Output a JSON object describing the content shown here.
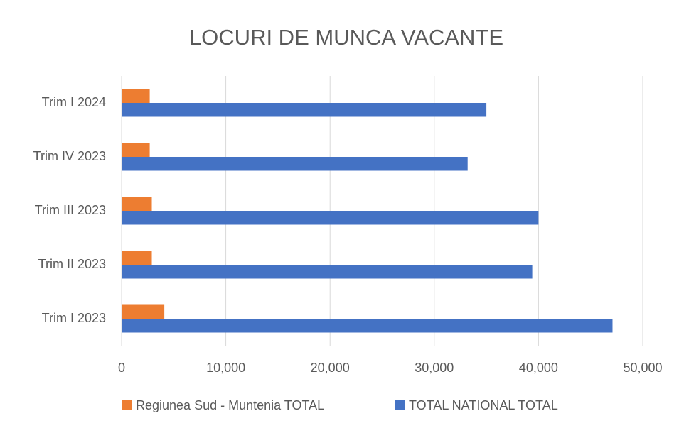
{
  "chart_data": {
    "type": "hbar",
    "title": "LOCURI DE MUNCA VACANTE",
    "categories": [
      "Trim I 2023",
      "Trim II 2023",
      "Trim III 2023",
      "Trim IV 2023",
      "Trim I 2024"
    ],
    "series": [
      {
        "name": "Regiunea Sud - Muntenia TOTAL",
        "color": "#ed7d31",
        "values": [
          4100,
          2900,
          2900,
          2700,
          2700
        ]
      },
      {
        "name": "TOTAL NATIONAL TOTAL",
        "color": "#4472c4",
        "values": [
          47100,
          39400,
          40000,
          33200,
          35000
        ]
      }
    ],
    "xlim": [
      0,
      50000
    ],
    "xticks": [
      0,
      {
        "value": 10000,
        "label": "10,000"
      },
      {
        "value": 20000,
        "label": "20,000"
      },
      {
        "value": 30000,
        "label": "30,000"
      },
      {
        "value": 40000,
        "label": "40,000"
      },
      {
        "value": 50000,
        "label": "50,000"
      }
    ],
    "grid": true,
    "legend": "bottom"
  }
}
